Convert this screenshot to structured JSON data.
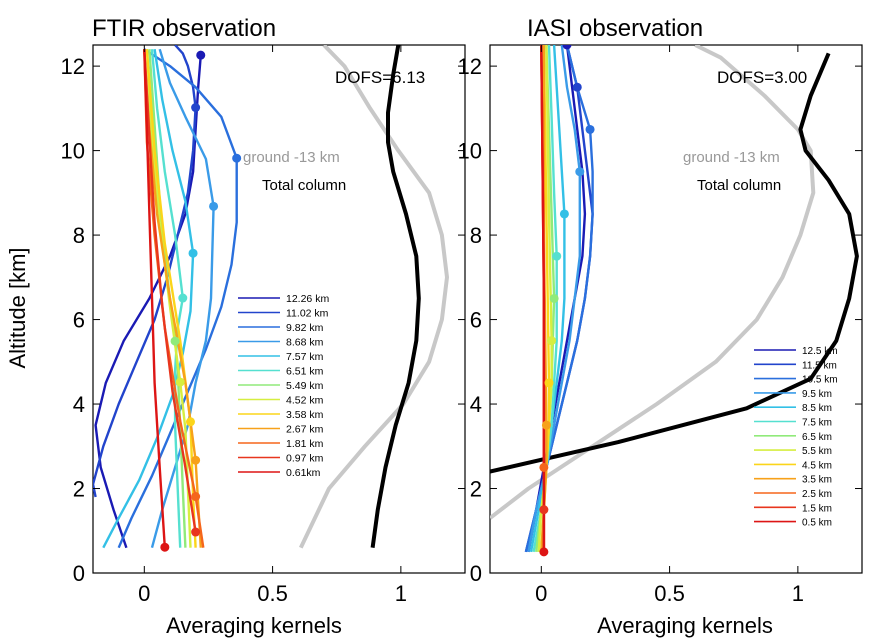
{
  "chart_data": [
    {
      "type": "line",
      "title": "FTIR observation",
      "xlabel": "Averaging kernels",
      "ylabel": "Altitude [km]",
      "xlim": [
        -0.2,
        1.25
      ],
      "ylim": [
        0,
        12.5
      ],
      "xticks": [
        0,
        0.5,
        1
      ],
      "xtick_labels": [
        "0",
        "0.5",
        "1"
      ],
      "yticks": [
        0,
        2,
        4,
        6,
        8,
        10,
        12
      ],
      "ytick_labels": [
        "0",
        "2",
        "4",
        "6",
        "8",
        "10",
        "12"
      ],
      "grid": false,
      "legend_position": "center-right",
      "annotations": {
        "dofs": "DOFS=6.13",
        "ground": "ground -13 km",
        "total": "Total column"
      },
      "series": [
        {
          "name": "12.26 km",
          "color": "#1a1ab4",
          "marker_y": 12.26,
          "x": [
            -0.07,
            -0.12,
            -0.17,
            -0.19,
            -0.15,
            -0.08,
            0.02,
            0.1,
            0.16,
            0.19,
            0.2,
            0.21,
            0.22
          ],
          "y": [
            0.6,
            1.5,
            2.5,
            3.5,
            4.5,
            5.5,
            6.5,
            7.5,
            8.5,
            9.5,
            10.5,
            11.5,
            12.26
          ]
        },
        {
          "name": "11.02 km",
          "color": "#2244cc",
          "marker_y": 11.02,
          "x": [
            -0.19,
            -0.2,
            -0.16,
            -0.1,
            -0.03,
            0.04,
            0.09,
            0.13,
            0.17,
            0.19,
            0.2,
            0.19,
            0.17,
            0.15,
            0.12
          ],
          "y": [
            1.8,
            2.1,
            3.0,
            4.0,
            5.0,
            6.0,
            7.0,
            8.0,
            9.0,
            10.0,
            11.02,
            11.5,
            12.0,
            12.3,
            12.5
          ]
        },
        {
          "name": "9.82 km",
          "color": "#2a6fdd",
          "marker_y": 9.82,
          "x": [
            -0.1,
            -0.05,
            0.03,
            0.1,
            0.17,
            0.24,
            0.3,
            0.34,
            0.36,
            0.36,
            0.3,
            0.2,
            0.1,
            0.0
          ],
          "y": [
            0.6,
            1.3,
            2.3,
            3.3,
            4.3,
            5.3,
            6.3,
            7.3,
            8.3,
            9.82,
            10.8,
            11.5,
            12.0,
            12.4
          ]
        },
        {
          "name": "8.68 km",
          "color": "#3a9be8",
          "marker_y": 8.68,
          "x": [
            0.03,
            0.07,
            0.12,
            0.17,
            0.2,
            0.24,
            0.26,
            0.27,
            0.24,
            0.16,
            0.1,
            0.06
          ],
          "y": [
            0.6,
            1.5,
            2.5,
            3.5,
            4.5,
            5.5,
            6.5,
            8.68,
            9.8,
            10.8,
            11.6,
            12.4
          ]
        },
        {
          "name": "7.57 km",
          "color": "#33c0e6",
          "marker_y": 7.57,
          "x": [
            -0.16,
            -0.1,
            -0.02,
            0.05,
            0.11,
            0.15,
            0.18,
            0.19,
            0.16,
            0.11,
            0.07,
            0.04
          ],
          "y": [
            0.6,
            1.3,
            2.2,
            3.2,
            4.2,
            5.2,
            6.2,
            7.57,
            8.8,
            10.0,
            11.2,
            12.4
          ]
        },
        {
          "name": "6.51 km",
          "color": "#55e0d0",
          "marker_y": 6.51,
          "x": [
            0.14,
            0.13,
            0.12,
            0.12,
            0.13,
            0.15,
            0.12,
            0.08,
            0.05,
            0.03
          ],
          "y": [
            0.6,
            2.0,
            3.5,
            4.8,
            5.8,
            6.51,
            8.0,
            9.5,
            11.0,
            12.4
          ]
        },
        {
          "name": "5.49 km",
          "color": "#90ea7a",
          "marker_y": 5.49,
          "x": [
            0.16,
            0.15,
            0.14,
            0.13,
            0.12,
            0.09,
            0.06,
            0.04,
            0.02
          ],
          "y": [
            0.6,
            2.0,
            3.5,
            4.8,
            5.49,
            7.0,
            8.8,
            10.6,
            12.4
          ]
        },
        {
          "name": "4.52 km",
          "color": "#d6ee40",
          "marker_y": 4.52,
          "x": [
            0.18,
            0.17,
            0.16,
            0.14,
            0.1,
            0.06,
            0.03,
            0.01
          ],
          "y": [
            0.6,
            2.0,
            3.4,
            4.52,
            6.3,
            8.3,
            10.3,
            12.4
          ]
        },
        {
          "name": "3.58 km",
          "color": "#fbd51a",
          "marker_y": 3.58,
          "x": [
            0.2,
            0.19,
            0.18,
            0.14,
            0.08,
            0.04,
            0.01
          ],
          "y": [
            0.6,
            1.8,
            3.58,
            5.5,
            7.8,
            10.0,
            12.4
          ]
        },
        {
          "name": "2.67 km",
          "color": "#f7a11a",
          "marker_y": 2.67,
          "x": [
            0.22,
            0.2,
            0.16,
            0.1,
            0.05,
            0.02,
            0.0
          ],
          "y": [
            0.6,
            2.67,
            4.5,
            6.5,
            8.5,
            10.5,
            12.4
          ]
        },
        {
          "name": "1.81 km",
          "color": "#f5661c",
          "marker_y": 1.81,
          "x": [
            0.23,
            0.2,
            0.14,
            0.08,
            0.04,
            0.01,
            0.0
          ],
          "y": [
            0.6,
            1.81,
            3.6,
            5.8,
            8.0,
            10.2,
            12.4
          ]
        },
        {
          "name": "0.97 km",
          "color": "#e8361e",
          "marker_y": 0.97,
          "x": [
            0.2,
            0.16,
            0.11,
            0.07,
            0.04,
            0.02,
            0.0
          ],
          "y": [
            0.97,
            2.5,
            4.3,
            6.3,
            8.3,
            10.3,
            12.4
          ]
        },
        {
          "name": "0.61km",
          "color": "#dd1515",
          "marker_y": 0.61,
          "x": [
            0.08,
            0.06,
            0.04,
            0.03,
            0.02,
            0.01,
            0.0
          ],
          "y": [
            0.61,
            2.5,
            4.5,
            6.5,
            8.5,
            10.5,
            12.4
          ]
        }
      ],
      "ground_column": {
        "color": "#c8c8c8",
        "x": [
          0.61,
          0.72,
          0.86,
          1.01,
          1.11,
          1.16,
          1.18,
          1.16,
          1.11,
          0.99,
          0.88,
          0.78,
          0.7
        ],
        "y": [
          0.6,
          2.0,
          3.0,
          4.0,
          5.0,
          6.0,
          7.0,
          8.0,
          9.0,
          10.0,
          11.0,
          12.0,
          12.5
        ]
      },
      "total_column": {
        "color": "#000000",
        "x": [
          0.89,
          0.91,
          0.94,
          0.98,
          1.03,
          1.06,
          1.07,
          1.06,
          1.02,
          0.97,
          0.95,
          0.95,
          0.97,
          0.99
        ],
        "y": [
          0.6,
          1.5,
          2.5,
          3.5,
          4.5,
          5.5,
          6.5,
          7.5,
          8.5,
          9.5,
          10.2,
          10.9,
          11.8,
          12.5
        ]
      }
    },
    {
      "type": "line",
      "title": "IASI observation",
      "xlabel": "Averaging kernels",
      "ylabel": "",
      "xlim": [
        -0.2,
        1.25
      ],
      "ylim": [
        0,
        12.5
      ],
      "xticks": [
        0,
        0.5,
        1
      ],
      "xtick_labels": [
        "0",
        "0.5",
        "1"
      ],
      "yticks": [
        0,
        2,
        4,
        6,
        8,
        10,
        12
      ],
      "ytick_labels": [
        "0",
        "2",
        "4",
        "6",
        "8",
        "10",
        "12"
      ],
      "grid": false,
      "legend_position": "bottom-right",
      "annotations": {
        "dofs": "DOFS=3.00",
        "ground": "ground -13 km",
        "total": "Total column"
      },
      "series": [
        {
          "name": "12.5 km",
          "color": "#1a1ab4",
          "marker_y": 12.5,
          "x": [
            -0.05,
            -0.02,
            0.01,
            0.04,
            0.07,
            0.1,
            0.13,
            0.16,
            0.17,
            0.16,
            0.13,
            0.1
          ],
          "y": [
            0.5,
            1.5,
            2.5,
            3.5,
            4.5,
            5.5,
            6.5,
            7.5,
            8.5,
            9.5,
            11.0,
            12.5
          ]
        },
        {
          "name": "11.5 km",
          "color": "#2244cc",
          "marker_y": 11.5,
          "x": [
            -0.06,
            -0.02,
            0.02,
            0.06,
            0.1,
            0.14,
            0.17,
            0.19,
            0.2,
            0.18,
            0.14,
            0.1
          ],
          "y": [
            0.5,
            1.5,
            2.5,
            3.5,
            4.5,
            5.5,
            6.5,
            7.5,
            8.5,
            9.5,
            11.5,
            12.5
          ]
        },
        {
          "name": "10.5 km",
          "color": "#2a6fdd",
          "marker_y": 10.5,
          "x": [
            -0.06,
            -0.02,
            0.02,
            0.06,
            0.1,
            0.14,
            0.17,
            0.19,
            0.2,
            0.2,
            0.19,
            0.14,
            0.1
          ],
          "y": [
            0.5,
            1.5,
            2.5,
            3.5,
            4.5,
            5.5,
            6.5,
            7.5,
            8.5,
            9.5,
            10.5,
            11.5,
            12.5
          ]
        },
        {
          "name": "9.5 km",
          "color": "#3a9be8",
          "marker_y": 9.5,
          "x": [
            -0.05,
            -0.02,
            0.02,
            0.05,
            0.08,
            0.11,
            0.13,
            0.15,
            0.15,
            0.13,
            0.1,
            0.08
          ],
          "y": [
            0.5,
            1.5,
            2.5,
            3.5,
            4.5,
            5.5,
            6.5,
            7.5,
            9.5,
            10.5,
            11.5,
            12.5
          ]
        },
        {
          "name": "8.5 km",
          "color": "#33c0e6",
          "marker_y": 8.5,
          "x": [
            -0.04,
            -0.01,
            0.02,
            0.04,
            0.06,
            0.08,
            0.09,
            0.09,
            0.07,
            0.05
          ],
          "y": [
            0.5,
            1.5,
            2.5,
            3.5,
            4.5,
            5.5,
            6.5,
            8.5,
            10.5,
            12.5
          ]
        },
        {
          "name": "7.5 km",
          "color": "#55e0d0",
          "marker_y": 7.5,
          "x": [
            -0.03,
            0.0,
            0.02,
            0.04,
            0.05,
            0.06,
            0.06,
            0.05,
            0.04,
            0.03
          ],
          "y": [
            0.5,
            1.5,
            2.5,
            3.5,
            4.5,
            5.5,
            7.5,
            9.0,
            10.8,
            12.5
          ]
        },
        {
          "name": "6.5 km",
          "color": "#90ea7a",
          "marker_y": 6.5,
          "x": [
            -0.02,
            0.0,
            0.02,
            0.03,
            0.04,
            0.05,
            0.04,
            0.03,
            0.02
          ],
          "y": [
            0.5,
            1.5,
            2.5,
            3.5,
            4.5,
            6.5,
            8.5,
            10.5,
            12.5
          ]
        },
        {
          "name": "5.5 km",
          "color": "#d6ee40",
          "marker_y": 5.5,
          "x": [
            -0.01,
            0.0,
            0.02,
            0.03,
            0.04,
            0.04,
            0.03,
            0.02
          ],
          "y": [
            0.5,
            1.5,
            2.5,
            3.5,
            4.5,
            5.5,
            8.5,
            12.5
          ]
        },
        {
          "name": "4.5 km",
          "color": "#fbd51a",
          "marker_y": 4.5,
          "x": [
            0.0,
            0.01,
            0.02,
            0.03,
            0.03,
            0.02,
            0.01
          ],
          "y": [
            0.5,
            1.5,
            2.5,
            3.5,
            4.5,
            8.5,
            12.5
          ]
        },
        {
          "name": "3.5 km",
          "color": "#f7a11a",
          "marker_y": 3.5,
          "x": [
            0.0,
            0.01,
            0.02,
            0.02,
            0.01,
            0.01
          ],
          "y": [
            0.5,
            1.5,
            2.5,
            3.5,
            8.0,
            12.5
          ]
        },
        {
          "name": "2.5 km",
          "color": "#f5661c",
          "marker_y": 2.5,
          "x": [
            0.01,
            0.01,
            0.01,
            0.01,
            0.0
          ],
          "y": [
            0.5,
            1.5,
            2.5,
            7.0,
            12.5
          ]
        },
        {
          "name": "1.5 km",
          "color": "#e8361e",
          "marker_y": 1.5,
          "x": [
            0.01,
            0.01,
            0.01,
            0.0
          ],
          "y": [
            0.5,
            1.5,
            6.5,
            12.5
          ]
        },
        {
          "name": "0.5 km",
          "color": "#dd1515",
          "marker_y": 0.5,
          "x": [
            0.01,
            0.01,
            0.0
          ],
          "y": [
            0.5,
            6.5,
            12.5
          ]
        }
      ],
      "ground_column": {
        "color": "#c8c8c8",
        "x": [
          -0.2,
          -0.05,
          0.2,
          0.45,
          0.68,
          0.84,
          0.94,
          1.01,
          1.06,
          1.05,
          1.0,
          0.87,
          0.7,
          0.6
        ],
        "y": [
          1.3,
          2.0,
          3.0,
          4.0,
          5.0,
          6.0,
          7.0,
          8.0,
          9.0,
          10.0,
          10.5,
          11.3,
          12.2,
          12.5
        ]
      },
      "total_column": {
        "color": "#000000",
        "x": [
          -0.2,
          0.3,
          0.8,
          1.05,
          1.15,
          1.2,
          1.23,
          1.2,
          1.12,
          1.03,
          1.01,
          1.05,
          1.12
        ],
        "y": [
          2.4,
          3.1,
          3.9,
          4.6,
          5.5,
          6.5,
          7.5,
          8.5,
          9.3,
          10.0,
          10.5,
          11.3,
          12.3
        ]
      }
    }
  ]
}
